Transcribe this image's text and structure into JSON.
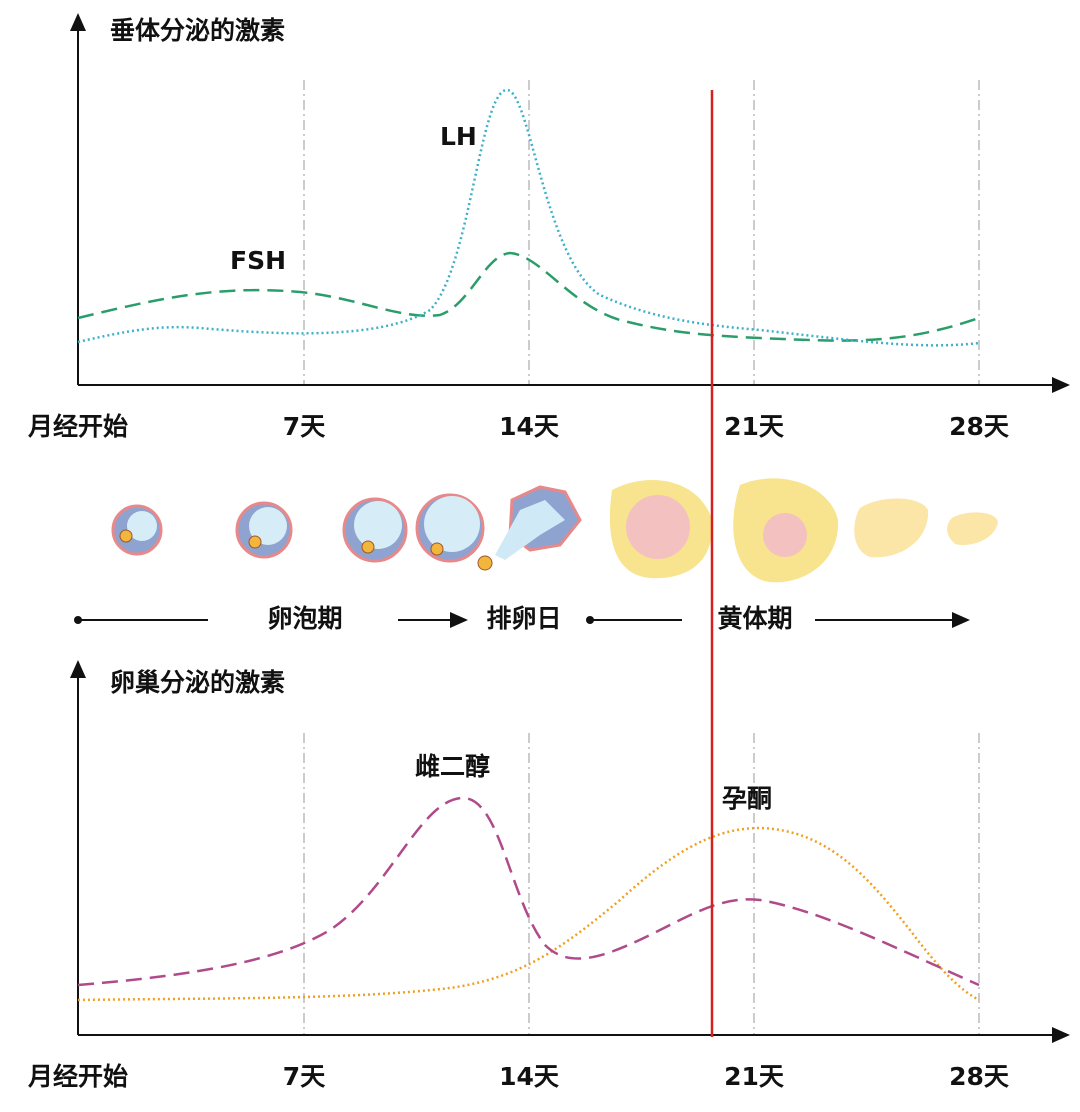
{
  "top_chart": {
    "title": "垂体分泌的激素",
    "labels": {
      "lh": "LH",
      "fsh": "FSH"
    },
    "x_labels": [
      "月经开始",
      "7天",
      "14天",
      "21天",
      "28天"
    ]
  },
  "phases": {
    "follicular": "卵泡期",
    "ovulation": "排卵日",
    "luteal": "黄体期"
  },
  "bottom_chart": {
    "title": "卵巢分泌的激素",
    "labels": {
      "estradiol": "雌二醇",
      "progesterone": "孕酮"
    },
    "x_labels": [
      "月经开始",
      "7天",
      "14天",
      "21天",
      "28天"
    ]
  }
}
